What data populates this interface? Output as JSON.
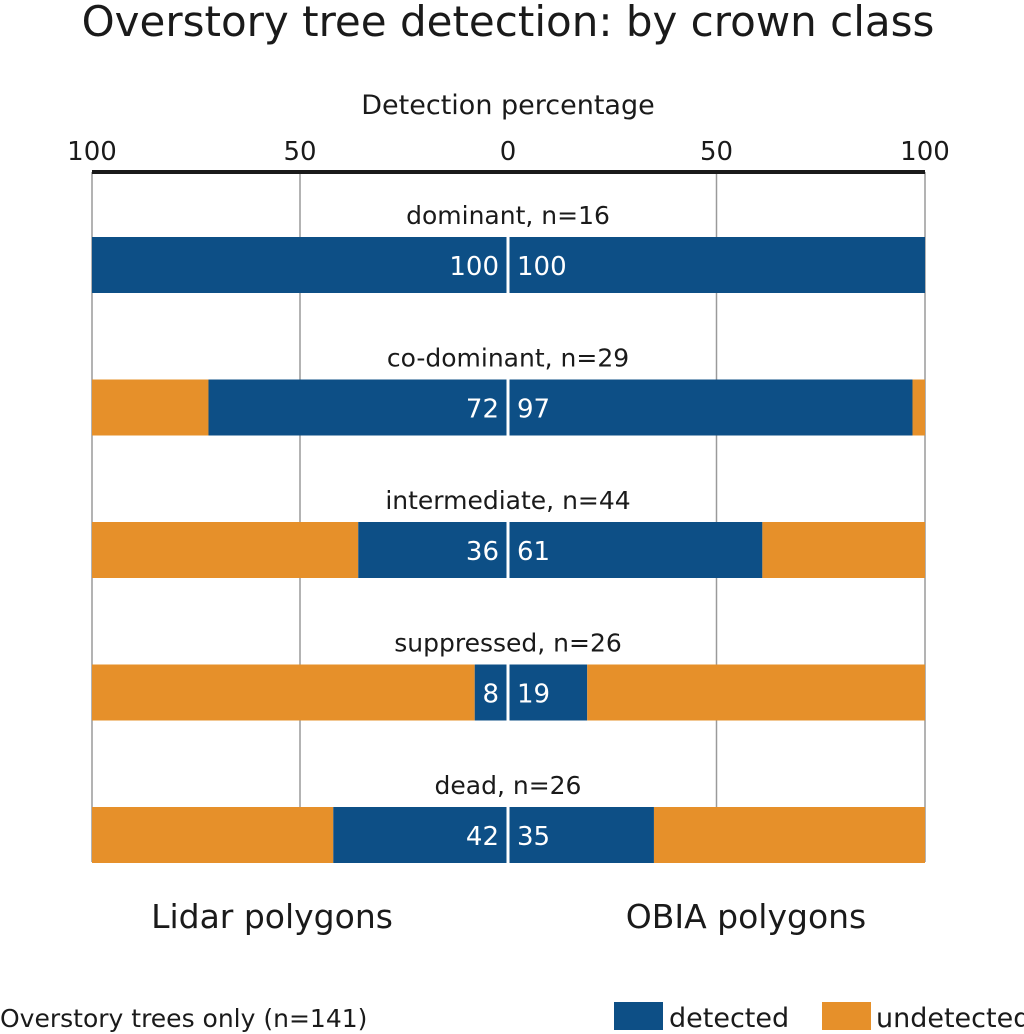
{
  "chart_data": {
    "type": "bar",
    "title": "Overstory tree detection: by crown class",
    "xlabel": "Detection percentage",
    "xlim_left": [
      100,
      0
    ],
    "xlim_right": [
      0,
      100
    ],
    "ticks": [
      "100",
      "50",
      "0",
      "50",
      "100"
    ],
    "categories": [
      "dominant, n=16",
      "co-dominant, n=29",
      "intermediate, n=44",
      "suppressed, n=26",
      "dead, n=26"
    ],
    "series": [
      {
        "name": "Lidar polygons",
        "side": "left",
        "values": [
          100,
          72,
          36,
          8,
          42
        ]
      },
      {
        "name": "OBIA polygons",
        "side": "right",
        "values": [
          100,
          97,
          61,
          19,
          35
        ]
      }
    ],
    "legend": [
      {
        "label": "detected",
        "color": "#0d4f86"
      },
      {
        "label": "undetected",
        "color": "#e6902a"
      }
    ],
    "footnote": "Overstory trees only (n=141)",
    "legend_position": "bottom-right"
  }
}
